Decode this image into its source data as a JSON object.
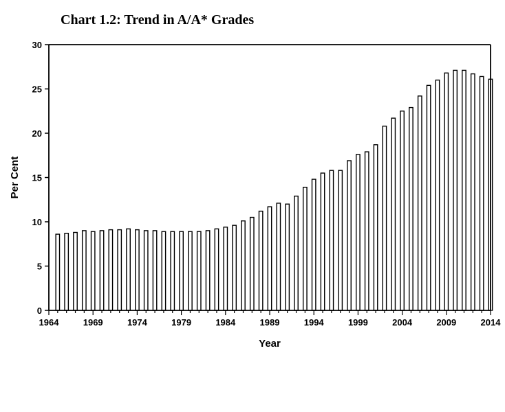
{
  "chart_data": {
    "type": "bar",
    "title": "Chart 1.2: Trend in A/A* Grades",
    "xlabel": "Year",
    "ylabel": "Per Cent",
    "ylim": [
      0,
      30
    ],
    "xlim": [
      1964,
      2014
    ],
    "yticks": [
      0,
      5,
      10,
      15,
      20,
      25,
      30
    ],
    "xticks": [
      1964,
      1969,
      1974,
      1979,
      1984,
      1989,
      1994,
      1999,
      2004,
      2009,
      2014
    ],
    "grid": false,
    "legend": "none",
    "bar_fill": "#ffffff",
    "bar_stroke": "#000000",
    "categories": [
      1965,
      1966,
      1967,
      1968,
      1969,
      1970,
      1971,
      1972,
      1973,
      1974,
      1975,
      1976,
      1977,
      1978,
      1979,
      1980,
      1981,
      1982,
      1983,
      1984,
      1985,
      1986,
      1987,
      1988,
      1989,
      1990,
      1991,
      1992,
      1993,
      1994,
      1995,
      1996,
      1997,
      1998,
      1999,
      2000,
      2001,
      2002,
      2003,
      2004,
      2005,
      2006,
      2007,
      2008,
      2009,
      2010,
      2011,
      2012,
      2013,
      2014
    ],
    "values": [
      8.6,
      8.7,
      8.8,
      9.0,
      8.9,
      9.0,
      9.1,
      9.1,
      9.2,
      9.1,
      9.0,
      9.0,
      8.9,
      8.9,
      8.9,
      8.9,
      8.9,
      9.0,
      9.2,
      9.4,
      9.6,
      10.1,
      10.5,
      11.2,
      11.7,
      12.1,
      12.0,
      12.9,
      13.9,
      14.8,
      15.5,
      15.8,
      15.8,
      16.9,
      17.6,
      17.9,
      18.7,
      20.8,
      21.7,
      22.5,
      22.9,
      24.2,
      25.4,
      26.0,
      26.8,
      27.1,
      27.1,
      26.7,
      26.4,
      26.1
    ]
  }
}
